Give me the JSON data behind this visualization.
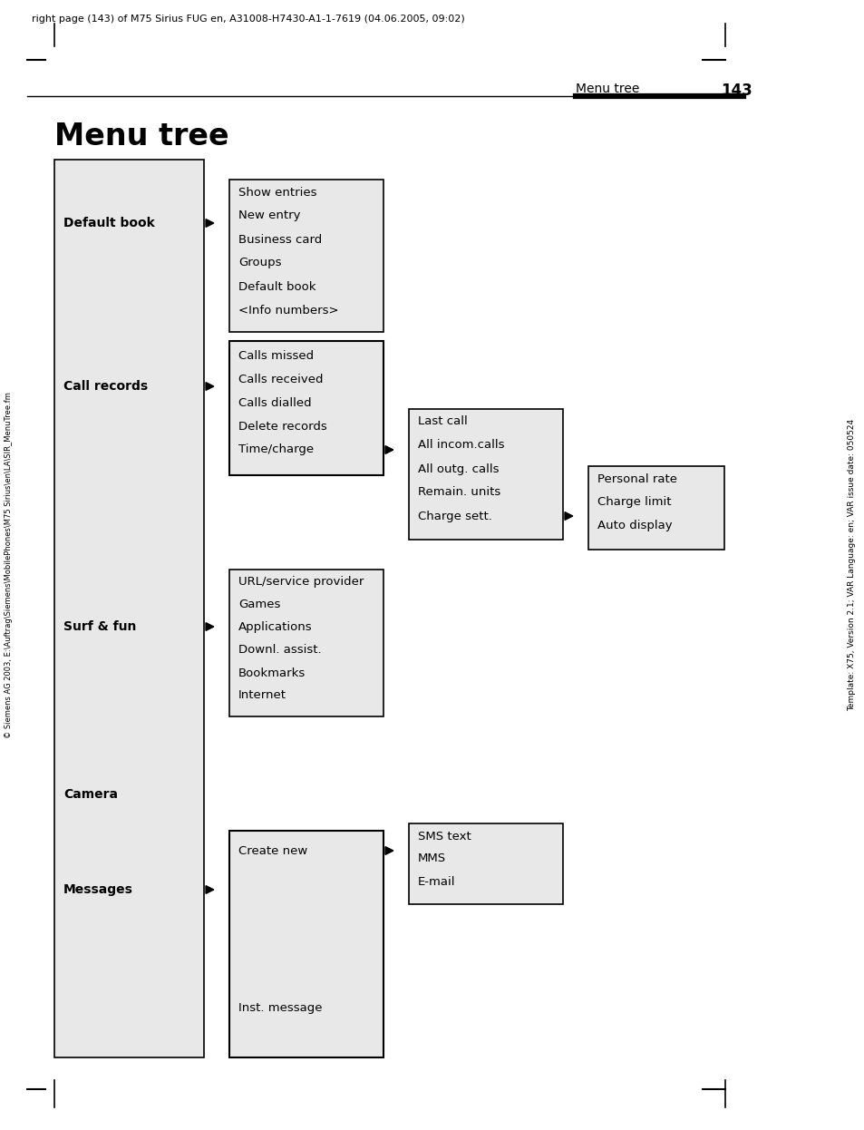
{
  "header_text": "right page (143) of M75 Sirius FUG en, A31008-H7430-A1-1-7619 (04.06.2005, 09:02)",
  "page_label": "Menu tree",
  "page_number": "143",
  "title": "Menu tree",
  "sidebar_text": "Template: X75, Version 2.1; VAR Language: en; VAR issue date: 050524",
  "left_sidebar_text": "© Siemens AG 2003, E:\\Auftrag\\Siemens\\MobilePhones\\M75 Sirius\\en\\LA\\SIR_MenuTree.fm",
  "bg_color": "#ffffff",
  "box_fill": "#e8e8e8"
}
